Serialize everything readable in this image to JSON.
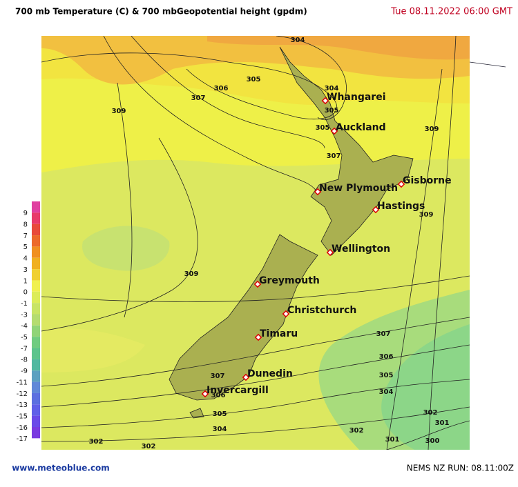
{
  "header": {
    "title": "700 mb Temperature (C)  & 700 mbGeopotential height (gpdm)",
    "date": "Tue 08.11.2022  06:00 GMT"
  },
  "legend": {
    "labels": [
      9,
      8,
      7,
      5,
      4,
      3,
      1,
      0,
      -1,
      -3,
      -4,
      -5,
      -7,
      -8,
      -9,
      -11,
      -12,
      -13,
      -15,
      -16,
      -17
    ],
    "colors": [
      "#e040a0",
      "#e83a6a",
      "#e84a3a",
      "#ec6a2a",
      "#f09020",
      "#f0b020",
      "#f0d030",
      "#f0f050",
      "#dcec58",
      "#c8e464",
      "#b4dc70",
      "#90d478",
      "#70cc80",
      "#5cc48c",
      "#50b8a0",
      "#5ca0c0",
      "#6088d8",
      "#5c70e0",
      "#6060e8",
      "#6a4ae8",
      "#7a3ae0"
    ]
  },
  "cities": [
    "Whangarei",
    "Auckland",
    "New Plymouth",
    "Gisborne",
    "Hastings",
    "Wellington",
    "Greymouth",
    "Christchurch",
    "Timaru",
    "Dunedin",
    "Invercargill"
  ],
  "contour_labels": [
    304,
    304,
    305,
    306,
    307,
    309,
    305,
    305,
    307,
    309,
    309,
    309,
    307,
    306,
    305,
    304,
    307,
    306,
    305,
    304,
    302,
    301,
    302,
    301,
    300,
    302,
    302
  ],
  "footer": {
    "site": "www.meteoblue.com",
    "run": "NEMS NZ  RUN: 08.11:00Z"
  }
}
